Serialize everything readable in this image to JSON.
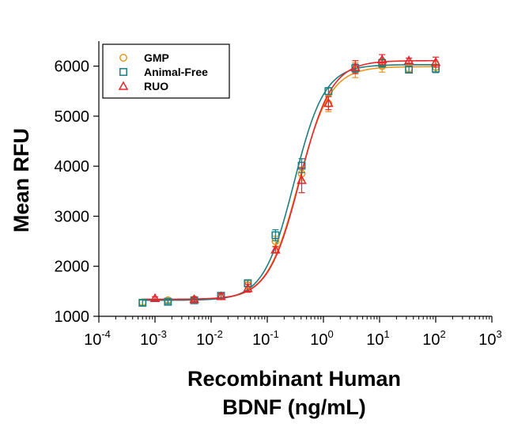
{
  "chart_data": {
    "type": "scatter",
    "title": "",
    "xlabel_lines": [
      "Recombinant Human",
      "BDNF (ng/mL)"
    ],
    "ylabel": "Mean RFU",
    "x_scale": "log",
    "xlim": [
      0.0001,
      1000
    ],
    "ylim": [
      1000,
      6500
    ],
    "x_ticks": [
      {
        "base": "10",
        "exp": "-4",
        "value": 0.0001
      },
      {
        "base": "10",
        "exp": "-3",
        "value": 0.001
      },
      {
        "base": "10",
        "exp": "-2",
        "value": 0.01
      },
      {
        "base": "10",
        "exp": "-1",
        "value": 0.1
      },
      {
        "base": "10",
        "exp": "0",
        "value": 1
      },
      {
        "base": "10",
        "exp": "1",
        "value": 10
      },
      {
        "base": "10",
        "exp": "2",
        "value": 100
      },
      {
        "base": "10",
        "exp": "3",
        "value": 1000
      }
    ],
    "y_ticks": [
      {
        "label": "1000",
        "value": 1000
      },
      {
        "label": "2000",
        "value": 2000
      },
      {
        "label": "3000",
        "value": 3000
      },
      {
        "label": "4000",
        "value": 4000
      },
      {
        "label": "5000",
        "value": 5000
      },
      {
        "label": "6000",
        "value": 6000
      }
    ],
    "grid": false,
    "legend_position": "top-left",
    "series": [
      {
        "name": "GMP",
        "marker": "circle",
        "color": "#E8961E",
        "points": [
          {
            "x": 0.0006,
            "y": 1280,
            "err": 50
          },
          {
            "x": 0.0017,
            "y": 1320,
            "err": 40
          },
          {
            "x": 0.005,
            "y": 1340,
            "err": 40
          },
          {
            "x": 0.015,
            "y": 1400,
            "err": 50
          },
          {
            "x": 0.045,
            "y": 1620,
            "err": 70
          },
          {
            "x": 0.14,
            "y": 2500,
            "err": 100
          },
          {
            "x": 0.41,
            "y": 3850,
            "err": 130
          },
          {
            "x": 1.23,
            "y": 5250,
            "err": 160
          },
          {
            "x": 3.7,
            "y": 5920,
            "err": 150
          },
          {
            "x": 11.1,
            "y": 6000,
            "err": 120
          },
          {
            "x": 33.3,
            "y": 5950,
            "err": 70
          },
          {
            "x": 100,
            "y": 5980,
            "err": 110
          }
        ],
        "curve": {
          "bottom": 1330,
          "top": 5990,
          "ec50": 0.36,
          "hill": 1.55
        }
      },
      {
        "name": "Animal-Free",
        "marker": "square",
        "color": "#1E7E82",
        "points": [
          {
            "x": 0.0006,
            "y": 1270,
            "err": 60
          },
          {
            "x": 0.0017,
            "y": 1290,
            "err": 40
          },
          {
            "x": 0.005,
            "y": 1320,
            "err": 40
          },
          {
            "x": 0.015,
            "y": 1410,
            "err": 40
          },
          {
            "x": 0.045,
            "y": 1660,
            "err": 60
          },
          {
            "x": 0.14,
            "y": 2620,
            "err": 110
          },
          {
            "x": 0.41,
            "y": 4010,
            "err": 140
          },
          {
            "x": 1.23,
            "y": 5500,
            "err": 70
          },
          {
            "x": 3.7,
            "y": 5960,
            "err": 80
          },
          {
            "x": 11.1,
            "y": 6060,
            "err": 80
          },
          {
            "x": 33.3,
            "y": 5930,
            "err": 60
          },
          {
            "x": 100,
            "y": 5950,
            "err": 80
          }
        ],
        "curve": {
          "bottom": 1320,
          "top": 6030,
          "ec50": 0.3,
          "hill": 1.6
        }
      },
      {
        "name": "RUO",
        "marker": "triangle",
        "color": "#E8252B",
        "points": [
          {
            "x": 0.001,
            "y": 1360,
            "err": 30
          },
          {
            "x": 0.005,
            "y": 1340,
            "err": 40
          },
          {
            "x": 0.015,
            "y": 1400,
            "err": 50
          },
          {
            "x": 0.045,
            "y": 1560,
            "err": 80
          },
          {
            "x": 0.14,
            "y": 2330,
            "err": 60
          },
          {
            "x": 0.41,
            "y": 3720,
            "err": 250
          },
          {
            "x": 1.23,
            "y": 5260,
            "err": 130
          },
          {
            "x": 3.7,
            "y": 5980,
            "err": 130
          },
          {
            "x": 11.1,
            "y": 6130,
            "err": 100
          },
          {
            "x": 33.3,
            "y": 6110,
            "err": 50
          },
          {
            "x": 100,
            "y": 6080,
            "err": 100
          }
        ],
        "curve": {
          "bottom": 1340,
          "top": 6110,
          "ec50": 0.38,
          "hill": 1.55
        }
      }
    ]
  }
}
